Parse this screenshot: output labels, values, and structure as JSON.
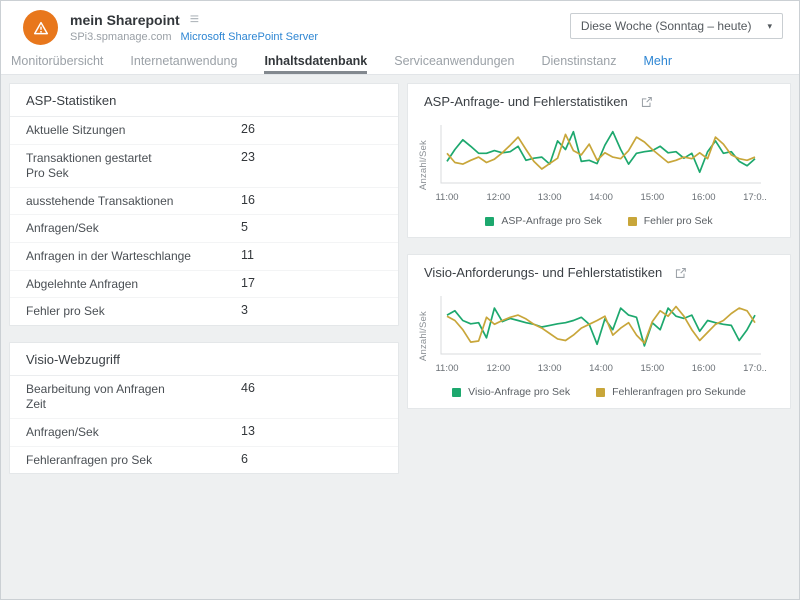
{
  "window": {
    "background": "#eef0f1",
    "frame_border": "#cbd0d4"
  },
  "header": {
    "logo_icon": "warning-triangle-icon",
    "logo_color": "#e8771c",
    "title": "mein Sharepoint",
    "menu_icon": "hamburger-list-icon",
    "host": "SPi3.spmanage.com",
    "product_link": "Microsoft SharePoint Server",
    "period_selector": {
      "value": "Diese Woche (Sonntag – heute)",
      "caret_icon": "caret-down-icon"
    }
  },
  "tabs": [
    {
      "label": "Monitorübersicht",
      "active": false,
      "link": false
    },
    {
      "label": "Internetanwendung",
      "active": false,
      "link": false
    },
    {
      "label": "Inhaltsdatenbank",
      "active": true,
      "link": false
    },
    {
      "label": "Serviceanwendungen",
      "active": false,
      "link": false
    },
    {
      "label": "Dienstinstanz",
      "active": false,
      "link": false
    },
    {
      "label": "Mehr",
      "active": false,
      "link": true
    }
  ],
  "stat_panels": [
    {
      "title": "ASP-Statistiken",
      "rows": [
        {
          "label": "Aktuelle Sitzungen",
          "value": "26"
        },
        {
          "label": "Transaktionen gestartet\nPro Sek",
          "value": "23"
        },
        {
          "label": "ausstehende Transaktionen",
          "value": "16"
        },
        {
          "label": "Anfragen/Sek",
          "value": "5"
        },
        {
          "label": "Anfragen in der Warteschlange",
          "value": "11"
        },
        {
          "label": "Abgelehnte Anfragen",
          "value": "17"
        },
        {
          "label": "Fehler pro Sek",
          "value": "3"
        }
      ]
    },
    {
      "title": "Visio-Webzugriff",
      "rows": [
        {
          "label": "Bearbeitung von Anfragen\nZeit",
          "value": "46"
        },
        {
          "label": "Anfragen/Sek",
          "value": "13"
        },
        {
          "label": "Fehleranfragen pro Sek",
          "value": "6"
        }
      ]
    }
  ],
  "chart_data": [
    {
      "type": "line",
      "title": "ASP-Anfrage- und Fehlerstatistiken",
      "external_link_icon": "open-in-new-icon",
      "ylabel": "Anzahl/Sek",
      "xlabel": "",
      "x_ticks": [
        "11:00",
        "12:00",
        "13:00",
        "14:00",
        "15:00",
        "16:00",
        "17:0.."
      ],
      "y_tick_labels": [],
      "values_scale": "relative 0-100 estimate (chart shows no y-axis tick values)",
      "grid": false,
      "legend_position": "bottom",
      "axis_color": "#d8dbde",
      "series": [
        {
          "name": "ASP-Anfrage pro Sek",
          "color": "#1da86e",
          "values": [
            40,
            62,
            80,
            68,
            55,
            55,
            60,
            56,
            58,
            68,
            42,
            46,
            48,
            35,
            78,
            62,
            95,
            40,
            42,
            36,
            70,
            95,
            62,
            35,
            55,
            58,
            60,
            68,
            56,
            58,
            46,
            55,
            20,
            58,
            78,
            55,
            58,
            40,
            32,
            45
          ]
        },
        {
          "name": "Fehler pro Sek",
          "color": "#c8a63a",
          "values": [
            55,
            38,
            35,
            42,
            48,
            38,
            44,
            56,
            70,
            85,
            62,
            40,
            26,
            36,
            46,
            90,
            60,
            52,
            72,
            42,
            56,
            48,
            45,
            60,
            85,
            76,
            62,
            50,
            38,
            42,
            48,
            45,
            56,
            45,
            85,
            72,
            52,
            45,
            42,
            48
          ]
        }
      ]
    },
    {
      "type": "line",
      "title": "Visio-Anforderungs- und Fehlerstatistiken",
      "external_link_icon": "open-in-new-icon",
      "ylabel": "Anzahl/Sek",
      "xlabel": "",
      "x_ticks": [
        "11:00",
        "12:00",
        "13:00",
        "14:00",
        "15:00",
        "16:00",
        "17:0.."
      ],
      "y_tick_labels": [],
      "values_scale": "relative 0-100 estimate (chart shows no y-axis tick values)",
      "grid": false,
      "legend_position": "bottom",
      "axis_color": "#d8dbde",
      "series": [
        {
          "name": "Visio-Anfrage pro Sek",
          "color": "#1da86e",
          "values": [
            72,
            80,
            62,
            56,
            58,
            30,
            85,
            60,
            66,
            62,
            58,
            55,
            50,
            53,
            56,
            58,
            62,
            68,
            55,
            18,
            65,
            45,
            85,
            72,
            68,
            15,
            58,
            45,
            85,
            70,
            66,
            72,
            42,
            62,
            58,
            55,
            53,
            25,
            45,
            72
          ]
        },
        {
          "name": "Fehleranfragen pro Sekunde",
          "color": "#c8a63a",
          "values": [
            70,
            62,
            45,
            22,
            24,
            68,
            55,
            62,
            68,
            72,
            65,
            55,
            48,
            38,
            28,
            25,
            35,
            48,
            55,
            62,
            70,
            35,
            48,
            58,
            35,
            20,
            60,
            80,
            70,
            88,
            70,
            45,
            25,
            40,
            55,
            62,
            75,
            85,
            80,
            58
          ]
        }
      ]
    }
  ]
}
